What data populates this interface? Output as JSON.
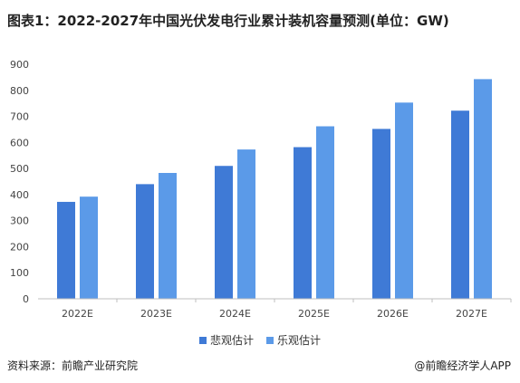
{
  "header": {
    "title": "图表1：2022-2027年中国光伏发电行业累计装机容量预测(单位：GW)"
  },
  "footer": {
    "source": "资料来源：前瞻产业研究院",
    "brand": "@前瞻经济学人APP"
  },
  "colors": {
    "pessimistic": "#3f7ad6",
    "optimistic": "#5b9ae8",
    "axis": "#bfbfbf"
  },
  "chart_data": {
    "type": "bar",
    "categories": [
      "2022E",
      "2023E",
      "2024E",
      "2025E",
      "2026E",
      "2027E"
    ],
    "series": [
      {
        "name": "悲观估计",
        "values": [
          372,
          440,
          510,
          582,
          652,
          722
        ]
      },
      {
        "name": "乐观估计",
        "values": [
          392,
          483,
          573,
          662,
          753,
          843
        ]
      }
    ],
    "yticks": [
      "0",
      "100",
      "200",
      "300",
      "400",
      "500",
      "600",
      "700",
      "800",
      "900"
    ],
    "ylim": [
      0,
      900
    ],
    "legend_position": "bottom",
    "grid": false
  }
}
